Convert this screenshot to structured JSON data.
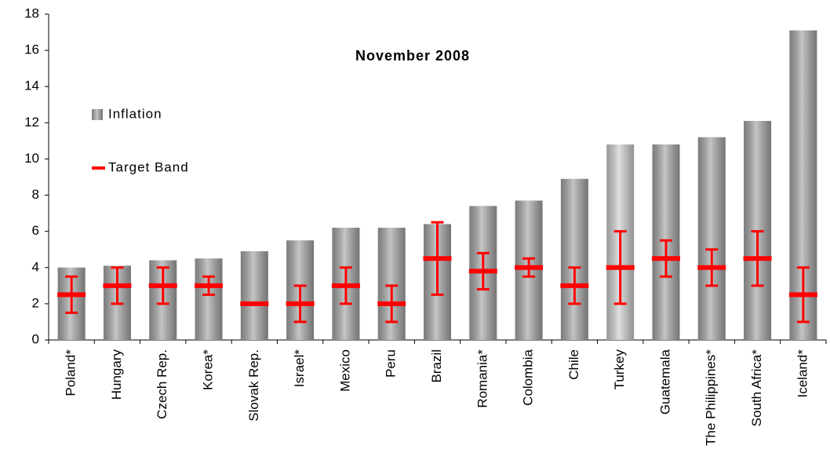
{
  "chart_data": {
    "type": "bar",
    "title": "November 2008",
    "categories": [
      "Poland*",
      "Hungary",
      "Czech Rep.",
      "Korea*",
      "Slovak Rep.",
      "Israel*",
      "Mexico",
      "Peru",
      "Brazil",
      "Romania*",
      "Colombia",
      "Chile",
      "Turkey",
      "Guatemala",
      "The Philippines*",
      "South Africa*",
      "Iceland*"
    ],
    "series": [
      {
        "name": "Inflation",
        "color": "#a6a6a6",
        "colors": [
          "#a6a6a6",
          "#a6a6a6",
          "#a6a6a6",
          "#a6a6a6",
          "#a6a6a6",
          "#a6a6a6",
          "#a6a6a6",
          "#a6a6a6",
          "#a6a6a6",
          "#a6a6a6",
          "#a6a6a6",
          "#a6a6a6",
          "#d0d0d0",
          "#a6a6a6",
          "#a6a6a6",
          "#a6a6a6",
          "#a6a6a6"
        ],
        "values": [
          4.0,
          4.1,
          4.4,
          4.5,
          4.9,
          5.5,
          6.2,
          6.2,
          6.4,
          7.4,
          7.7,
          8.9,
          10.8,
          10.8,
          11.2,
          12.1,
          17.1
        ]
      },
      {
        "name": "Target Band",
        "color": "#ff0000",
        "values": [
          2.5,
          3,
          3,
          3,
          2,
          2,
          3,
          2,
          4.5,
          3.8,
          4,
          3,
          4,
          4.5,
          4,
          4.5,
          2.5
        ],
        "errors": [
          1,
          1,
          1,
          0.5,
          0,
          1,
          1,
          1,
          2,
          1,
          0.5,
          1,
          2,
          1,
          1,
          1.5,
          1.5
        ]
      }
    ],
    "ylim": [
      0,
      18
    ],
    "yticks": [
      0,
      2,
      4,
      6,
      8,
      10,
      12,
      14,
      16,
      18
    ],
    "grid": false
  }
}
